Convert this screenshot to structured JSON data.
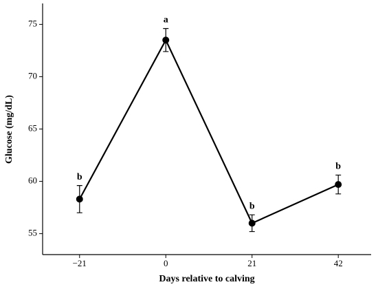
{
  "chart_data": {
    "type": "line",
    "xlabel": "Days relative to calving",
    "ylabel": "Glucose (mg/dL)",
    "x": [
      -21,
      0,
      21,
      42
    ],
    "series": [
      {
        "color": "#000000",
        "values": [
          58.3,
          73.5,
          56.0,
          59.7
        ],
        "errors": [
          1.3,
          1.1,
          0.8,
          0.9
        ],
        "annotations": [
          "b",
          "a",
          "b",
          "b"
        ]
      }
    ],
    "xlim": [
      -30,
      50
    ],
    "xticks": [
      {
        "value": -21,
        "label": "−21"
      },
      0,
      21,
      42
    ],
    "ylim": [
      53,
      77
    ],
    "yticks": [
      55,
      60,
      65,
      70,
      75
    ]
  }
}
